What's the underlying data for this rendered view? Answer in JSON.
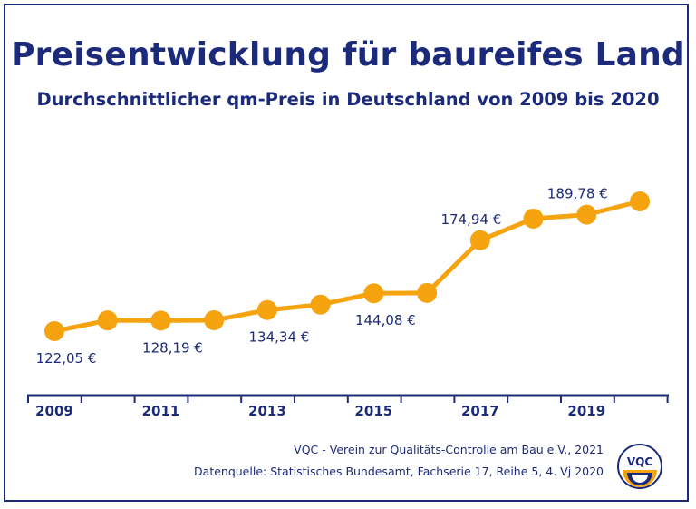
{
  "title": "Preisentwicklung für baureifes Land",
  "subtitle": "Durchschnittlicher qm-Preis in Deutschland von 2009 bis 2020",
  "footer": {
    "credit": "VQC - Verein zur Qualitäts-Controlle am Bau e.V., 2021",
    "source": "Datenquelle: Statistisches Bundesamt, Fachserie 17, Reihe 5, 4. Vj 2020"
  },
  "logo": {
    "text": "VQC",
    "icon": "vqc-logo-icon"
  },
  "colors": {
    "line": "#f5a30f",
    "text": "#1b2a7a",
    "axis": "#1b2a7a"
  },
  "chart_data": {
    "type": "line",
    "x": [
      2009,
      2010,
      2011,
      2012,
      2013,
      2014,
      2015,
      2016,
      2017,
      2018,
      2019,
      2020
    ],
    "values": [
      122.05,
      128.3,
      128.19,
      128.4,
      134.34,
      137.5,
      144.08,
      144.3,
      174.94,
      187.5,
      189.78,
      197.5
    ],
    "tick_labels": [
      "2009",
      "2011",
      "2013",
      "2015",
      "2017",
      "2019"
    ],
    "data_labels": [
      {
        "year": 2009,
        "text": "122,05 €",
        "pos": "below"
      },
      {
        "year": 2011,
        "text": "128,19 €",
        "pos": "below"
      },
      {
        "year": 2013,
        "text": "134,34 €",
        "pos": "below"
      },
      {
        "year": 2015,
        "text": "144,08 €",
        "pos": "below"
      },
      {
        "year": 2017,
        "text": "174,94 €",
        "pos": "above"
      },
      {
        "year": 2019,
        "text": "189,78 €",
        "pos": "above"
      }
    ],
    "grid": false,
    "legend": "none"
  }
}
